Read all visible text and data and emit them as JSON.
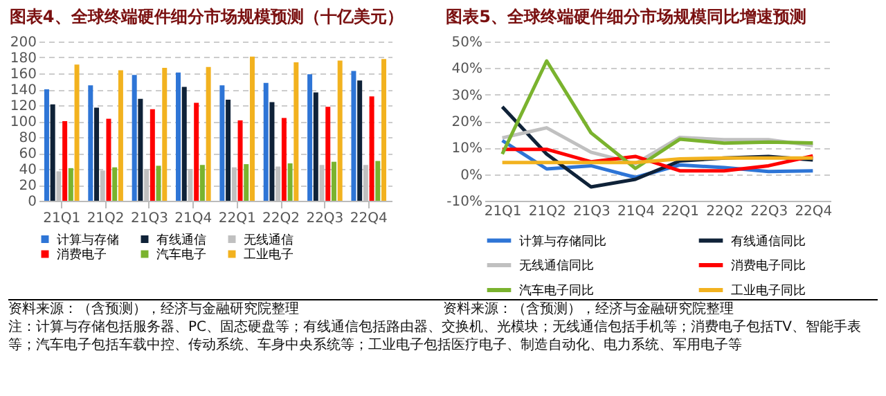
{
  "chart_data": [
    {
      "type": "bar",
      "title": "图表4、全球终端硬件细分市场规模预测（十亿美元）",
      "categories": [
        "21Q1",
        "21Q2",
        "21Q3",
        "21Q4",
        "22Q1",
        "22Q2",
        "22Q3",
        "22Q4"
      ],
      "series": [
        {
          "name": "计算与存储",
          "color": "#2e75d6",
          "values": [
            140,
            145,
            158,
            161,
            145,
            148,
            159,
            163
          ]
        },
        {
          "name": "有线通信",
          "color": "#0f2238",
          "values": [
            121,
            117,
            128,
            143,
            127,
            124,
            136,
            151
          ]
        },
        {
          "name": "无线通信",
          "color": "#c0c0c0",
          "values": [
            37,
            38,
            40,
            40,
            42,
            43,
            45,
            45
          ]
        },
        {
          "name": "消费电子",
          "color": "#ff0000",
          "values": [
            100,
            103,
            115,
            123,
            101,
            104,
            118,
            131
          ]
        },
        {
          "name": "汽车电子",
          "color": "#7ab32e",
          "values": [
            41,
            42,
            44,
            45,
            46,
            47,
            49,
            50
          ]
        },
        {
          "name": "工业电子",
          "color": "#f2b21f",
          "values": [
            171,
            164,
            167,
            168,
            181,
            174,
            176,
            178
          ]
        }
      ],
      "ylim": [
        0,
        200
      ],
      "yticks": [
        0,
        20,
        40,
        60,
        80,
        100,
        120,
        140,
        160,
        180,
        200
      ],
      "grid": "y",
      "legend": "bottom",
      "annotations": [
        "资料来源：（含预测），经济与金融研究院整理",
        "注：计算与存储包括服务器、PC、固态硬盘等；有线通信包括路由器、交换机、光模块；无线通信包括手机等；消费电子包括TV、智能手表等；汽车电子包括车载中控、传动系统、车身中央系统等；工业电子包括医疗电子、制造自动化、电力系统、军用电子等"
      ]
    },
    {
      "type": "line",
      "title": "图表5、全球终端硬件细分市场规模同比增速预测",
      "categories": [
        "21Q1",
        "21Q2",
        "21Q3",
        "21Q4",
        "22Q1",
        "22Q2",
        "22Q3",
        "22Q4"
      ],
      "series": [
        {
          "name": "计算与存储同比",
          "color": "#2e75d6",
          "values": [
            12.7,
            2,
            3.2,
            -1.2,
            3.5,
            2.5,
            1,
            1.3
          ]
        },
        {
          "name": "有线通信同比",
          "color": "#0f2238",
          "values": [
            25.4,
            7.6,
            -4.8,
            -1.9,
            5,
            6.1,
            6.7,
            5.4
          ]
        },
        {
          "name": "无线通信同比",
          "color": "#c0c0c0",
          "values": [
            13.7,
            17.5,
            8.3,
            4,
            13.9,
            13,
            13,
            10.8
          ]
        },
        {
          "name": "消费电子同比",
          "color": "#ff0000",
          "values": [
            9.4,
            9.4,
            4.7,
            6.7,
            1.3,
            1.3,
            3.2,
            6.9
          ]
        },
        {
          "name": "汽车电子同比",
          "color": "#7ab32e",
          "values": [
            7.6,
            42.7,
            15.6,
            2.2,
            13.2,
            11.7,
            12.1,
            11.8
          ]
        },
        {
          "name": "工业电子同比",
          "color": "#f2b21f",
          "values": [
            4.4,
            4.4,
            4.4,
            4.4,
            5.8,
            6.1,
            6.1,
            6.1
          ]
        }
      ],
      "ylim": [
        -10,
        50
      ],
      "yticks": [
        {
          "value": -10,
          "label": "-10%"
        },
        {
          "value": 0,
          "label": "0%"
        },
        {
          "value": 10,
          "label": "10%"
        },
        {
          "value": 20,
          "label": "20%"
        },
        {
          "value": 30,
          "label": "30%"
        },
        {
          "value": 40,
          "label": "40%"
        },
        {
          "value": 50,
          "label": "50%"
        }
      ],
      "grid": "y",
      "legend": "bottom",
      "line_style": "solid",
      "marker": "none",
      "annotations": [
        "资料来源：（含预测），经济与金融研究院整理"
      ]
    }
  ]
}
